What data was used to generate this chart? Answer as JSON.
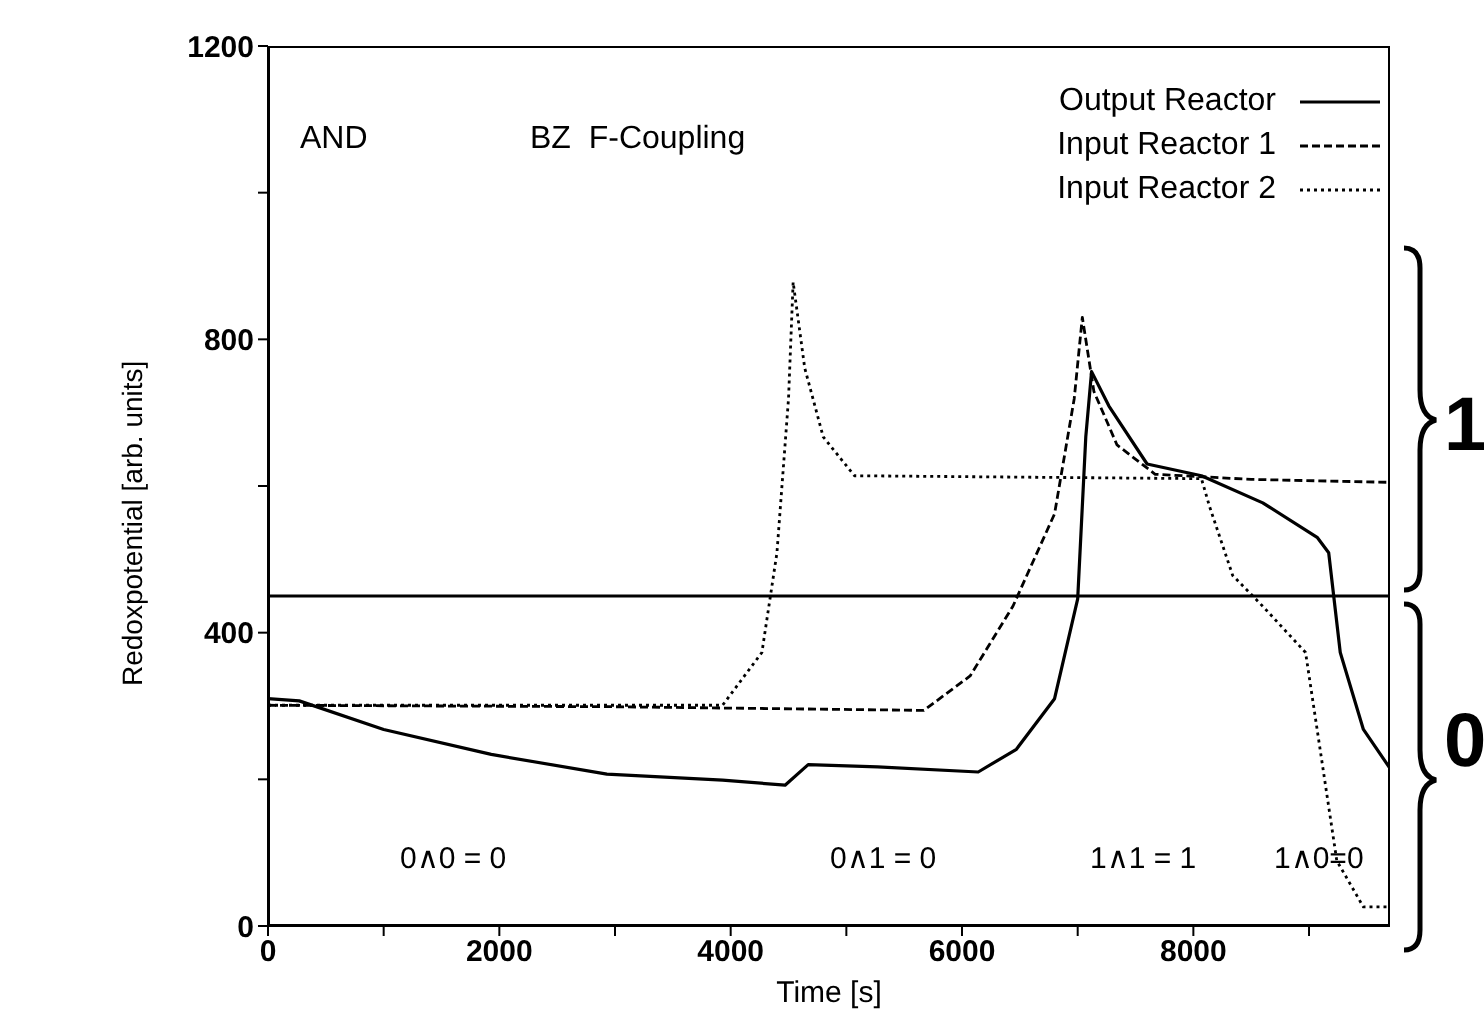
{
  "chart_data": {
    "type": "line",
    "xlabel": "Time [s]",
    "ylabel": "Redoxpotential [arb. units]",
    "xlim": [
      0,
      9700
    ],
    "xticks": [
      0,
      {
        "value": 1000,
        "label": null
      },
      2000,
      {
        "value": 3000,
        "label": null
      },
      4000,
      {
        "value": 5000,
        "label": null
      },
      6000,
      {
        "value": 7000,
        "label": null
      },
      8000,
      {
        "value": 9000,
        "label": null
      }
    ],
    "ylim": [
      0,
      1200
    ],
    "yticks": [
      0,
      {
        "value": 200,
        "label": null
      },
      400,
      {
        "value": 600,
        "label": null
      },
      800,
      {
        "value": 1000,
        "label": null
      },
      1200
    ],
    "legend": "top right",
    "marker": "none",
    "ref_lines": [
      {
        "axis": "y",
        "value": 450,
        "color": "#000000"
      }
    ],
    "annotations": [
      "AND",
      "BZ  F-Coupling",
      "0∧0 = 0",
      "0∧1 = 0",
      "1∧1 = 1",
      "1∧0=0",
      "1",
      "0"
    ],
    "series": [
      {
        "name": "Output Reactor",
        "color": "#000000",
        "line_style": "solid",
        "x": [
          0,
          270,
          1000,
          1930,
          2930,
          3930,
          4470,
          4670,
          5270,
          6140,
          6470,
          6800,
          7000,
          7070,
          7120,
          7270,
          7600,
          8070,
          8600,
          9070,
          9170,
          9270,
          9470,
          9700
        ],
        "values": [
          310,
          307,
          268,
          234,
          207,
          199,
          192,
          220,
          217,
          210,
          241,
          310,
          446,
          667,
          756,
          709,
          630,
          614,
          577,
          530,
          509,
          373,
          268,
          215
        ]
      },
      {
        "name": "Input Reactor 1",
        "color": "#000000",
        "line_style": "dashed",
        "x": [
          0,
          3000,
          5670,
          6070,
          6440,
          6800,
          6970,
          7040,
          7140,
          7340,
          7670,
          8500,
          9700
        ],
        "values": [
          301,
          299,
          294,
          341,
          436,
          562,
          719,
          830,
          729,
          656,
          616,
          609,
          605
        ]
      },
      {
        "name": "Input Reactor 2",
        "color": "#000000",
        "line_style": "dotted",
        "x": [
          0,
          3930,
          4270,
          4400,
          4500,
          4540,
          4640,
          4800,
          5070,
          8070,
          8140,
          8340,
          8600,
          8970,
          9070,
          9240,
          9470,
          9700
        ],
        "values": [
          301,
          301,
          373,
          509,
          719,
          878,
          761,
          667,
          614,
          610,
          572,
          478,
          436,
          373,
          268,
          89,
          26,
          26
        ]
      }
    ]
  }
}
